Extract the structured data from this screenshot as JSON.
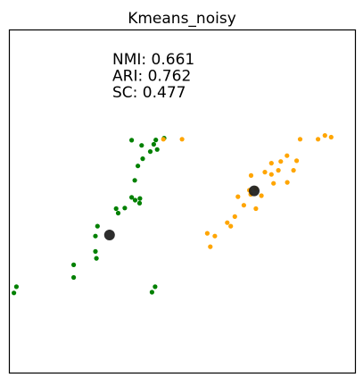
{
  "chart_data": {
    "type": "scatter",
    "title": "Kmeans_noisy",
    "xlabel": "",
    "ylabel": "",
    "xlim": [
      0,
      100
    ],
    "ylim": [
      0,
      100
    ],
    "axes_ticks": false,
    "grid": false,
    "metrics": [
      {
        "label": "NMI: 0.661"
      },
      {
        "label": "ARI: 0.762"
      },
      {
        "label": "SC: 0.477"
      }
    ],
    "series": [
      {
        "color": "#008000",
        "points": [
          [
            44.7,
            68.5
          ],
          [
            42.3,
            68.0
          ],
          [
            35.3,
            67.9
          ],
          [
            41.7,
            66.7
          ],
          [
            38.2,
            66.4
          ],
          [
            42.7,
            65.2
          ],
          [
            40.7,
            64.6
          ],
          [
            38.5,
            62.5
          ],
          [
            37.1,
            60.4
          ],
          [
            36.2,
            56.2
          ],
          [
            35.3,
            51.2
          ],
          [
            37.7,
            50.9
          ],
          [
            36.3,
            50.4
          ],
          [
            37.6,
            49.5
          ],
          [
            33.3,
            48.1
          ],
          [
            30.8,
            47.9
          ],
          [
            31.4,
            46.6
          ],
          [
            25.4,
            42.8
          ],
          [
            24.8,
            39.9
          ],
          [
            24.8,
            35.4
          ],
          [
            25.1,
            33.4
          ],
          [
            18.5,
            31.5
          ],
          [
            18.5,
            27.8
          ],
          [
            1.9,
            25.1
          ],
          [
            1.2,
            23.3
          ],
          [
            42.1,
            25.1
          ],
          [
            41.2,
            23.5
          ]
        ]
      },
      {
        "color": "#ffa500",
        "points": [
          [
            44.5,
            68.2
          ],
          [
            49.9,
            68.2
          ],
          [
            84.1,
            68.2
          ],
          [
            89.3,
            68.2
          ],
          [
            93.1,
            68.8
          ],
          [
            91.3,
            69.3
          ],
          [
            80.3,
            63.4
          ],
          [
            83.1,
            61.9
          ],
          [
            78.5,
            61.7
          ],
          [
            75.8,
            61.2
          ],
          [
            82.2,
            59.1
          ],
          [
            77.8,
            59.1
          ],
          [
            73.9,
            58.6
          ],
          [
            75.8,
            57.9
          ],
          [
            69.9,
            57.6
          ],
          [
            80.4,
            55.6
          ],
          [
            76.4,
            55.3
          ],
          [
            71.3,
            53.8
          ],
          [
            69.4,
            53.3
          ],
          [
            69.8,
            52.1
          ],
          [
            66.1,
            51.4
          ],
          [
            72.9,
            51.7
          ],
          [
            67.8,
            48.9
          ],
          [
            71.3,
            47.9
          ],
          [
            65.2,
            45.6
          ],
          [
            63.0,
            43.8
          ],
          [
            64.0,
            42.8
          ],
          [
            57.2,
            40.7
          ],
          [
            59.4,
            39.9
          ],
          [
            58.1,
            36.8
          ]
        ]
      }
    ],
    "centroids": {
      "color": "#222222",
      "points": [
        [
          28.9,
          40.2
        ],
        [
          70.8,
          53.1
        ]
      ]
    }
  }
}
